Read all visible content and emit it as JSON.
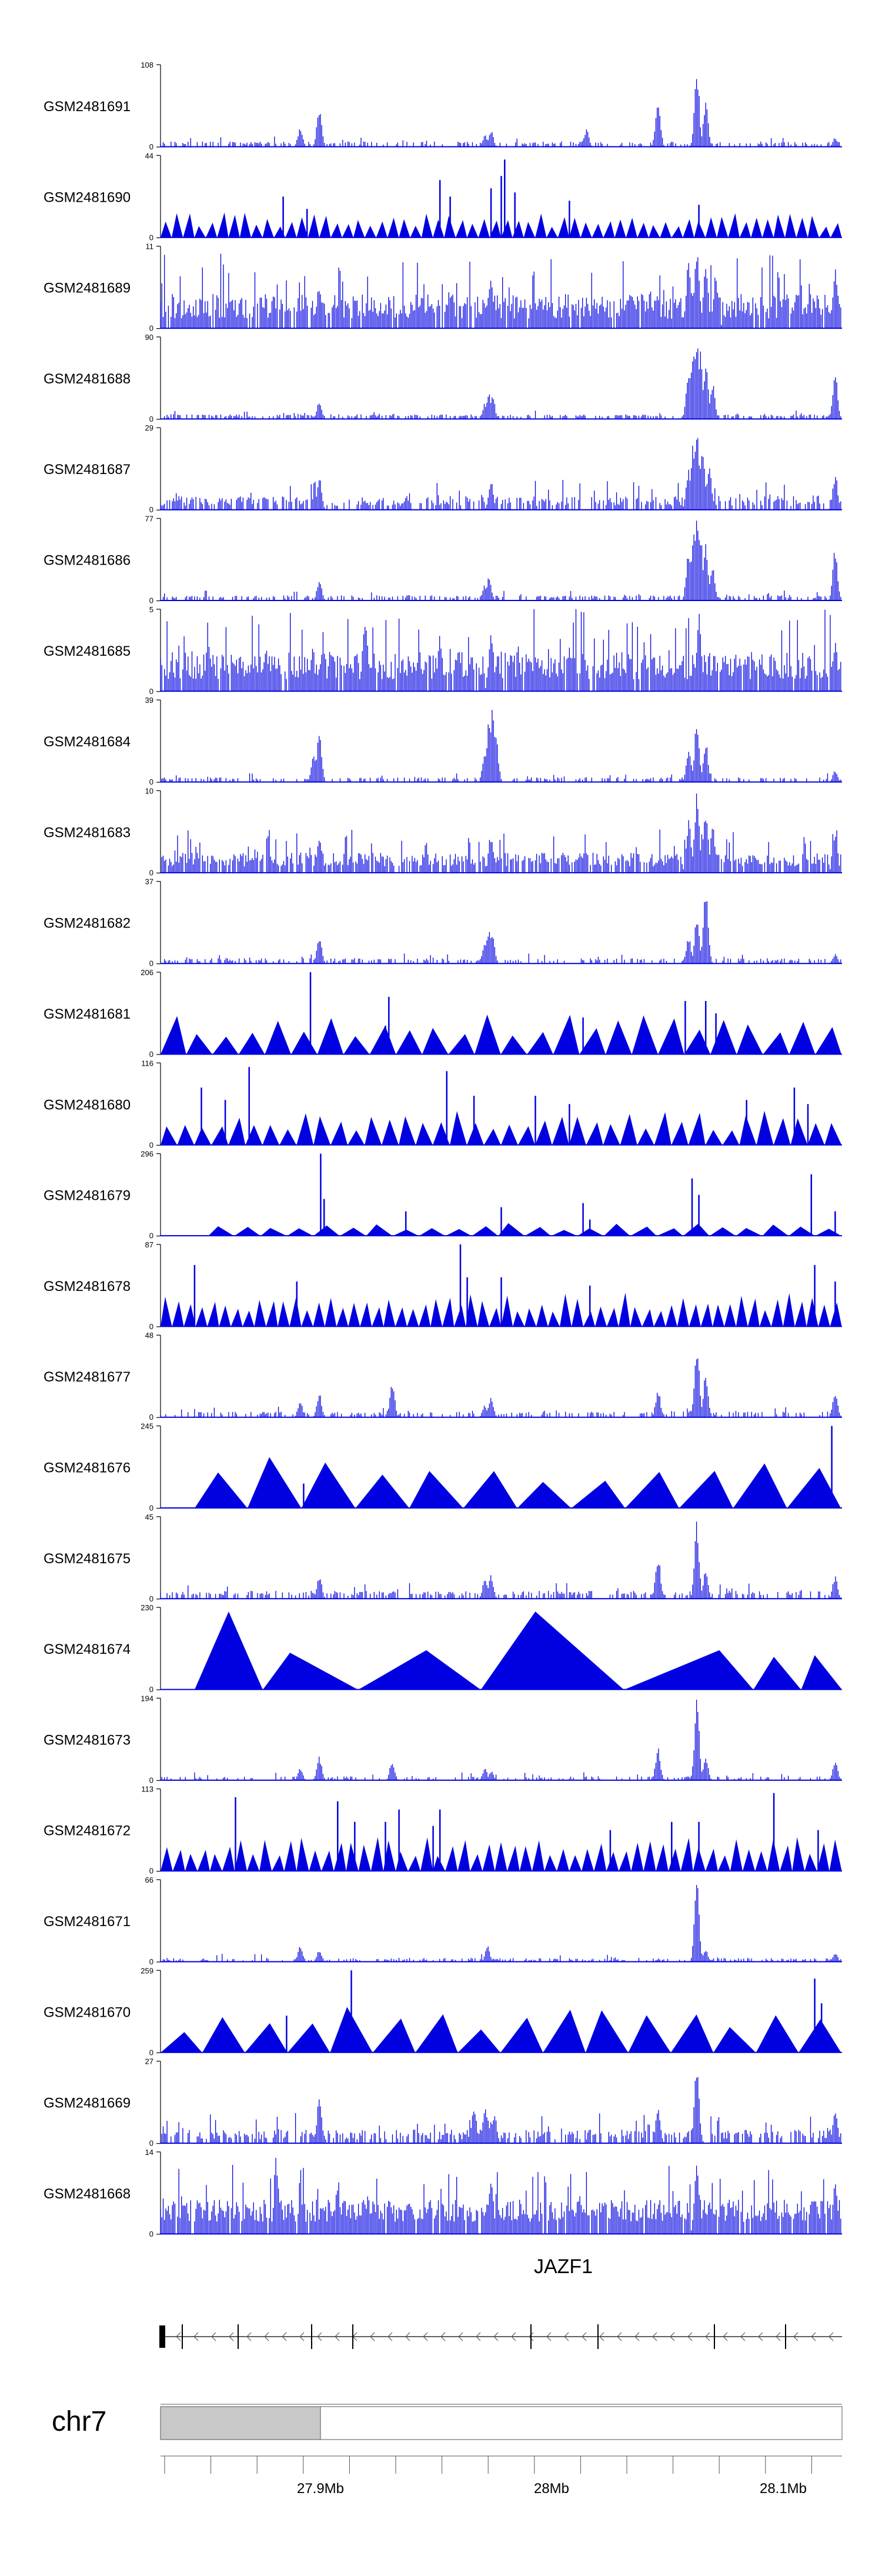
{
  "tracks": [
    {
      "id": "GSM2481691",
      "ymax": "108",
      "ymin": "0",
      "style": "bars",
      "density": 0.35,
      "floor": 0.03,
      "noise": 0.06,
      "peaks": [
        [
          0.205,
          0.25
        ],
        [
          0.233,
          0.5
        ],
        [
          0.485,
          0.2
        ],
        [
          0.476,
          0.15
        ],
        [
          0.62,
          0.1
        ],
        [
          0.625,
          0.22
        ],
        [
          0.73,
          0.65
        ],
        [
          0.785,
          0.3
        ],
        [
          0.787,
          1.0
        ],
        [
          0.8,
          0.55
        ],
        [
          0.99,
          0.12
        ]
      ]
    },
    {
      "id": "GSM2481690",
      "ymax": "44",
      "ymin": "0",
      "style": "triangles",
      "count": 60,
      "base": 0.22,
      "spikes": [
        [
          0.18,
          0.5
        ],
        [
          0.215,
          0.35
        ],
        [
          0.41,
          0.7
        ],
        [
          0.425,
          0.5
        ],
        [
          0.485,
          0.6
        ],
        [
          0.5,
          0.75
        ],
        [
          0.505,
          0.95
        ],
        [
          0.52,
          0.55
        ],
        [
          0.6,
          0.45
        ],
        [
          0.79,
          0.4
        ]
      ]
    },
    {
      "id": "GSM2481689",
      "ymax": "11",
      "ymin": "0",
      "style": "bars",
      "density": 0.9,
      "floor": 0.12,
      "noise": 0.5,
      "peaks": [
        [
          0.233,
          0.6
        ],
        [
          0.485,
          0.7
        ],
        [
          0.775,
          0.9
        ],
        [
          0.787,
          1.0
        ],
        [
          0.8,
          0.85
        ],
        [
          0.815,
          0.7
        ],
        [
          0.99,
          0.8
        ]
      ]
    },
    {
      "id": "GSM2481688",
      "ymax": "90",
      "ymin": "0",
      "style": "bars",
      "density": 0.45,
      "floor": 0.03,
      "noise": 0.05,
      "peaks": [
        [
          0.233,
          0.25
        ],
        [
          0.476,
          0.2
        ],
        [
          0.482,
          0.33
        ],
        [
          0.487,
          0.3
        ],
        [
          0.775,
          0.65
        ],
        [
          0.782,
          0.95
        ],
        [
          0.787,
          1.0
        ],
        [
          0.792,
          0.9
        ],
        [
          0.8,
          0.7
        ],
        [
          0.81,
          0.45
        ],
        [
          0.99,
          0.6
        ]
      ]
    },
    {
      "id": "GSM2481687",
      "ymax": "29",
      "ymin": "0",
      "style": "bars",
      "density": 0.6,
      "floor": 0.05,
      "noise": 0.2,
      "peaks": [
        [
          0.233,
          0.4
        ],
        [
          0.485,
          0.35
        ],
        [
          0.775,
          0.55
        ],
        [
          0.782,
          0.85
        ],
        [
          0.787,
          1.0
        ],
        [
          0.795,
          0.8
        ],
        [
          0.805,
          0.6
        ],
        [
          0.99,
          0.45
        ]
      ]
    },
    {
      "id": "GSM2481686",
      "ymax": "77",
      "ymin": "0",
      "style": "bars",
      "density": 0.45,
      "floor": 0.03,
      "noise": 0.06,
      "peaks": [
        [
          0.233,
          0.25
        ],
        [
          0.476,
          0.2
        ],
        [
          0.482,
          0.3
        ],
        [
          0.775,
          0.65
        ],
        [
          0.782,
          0.95
        ],
        [
          0.787,
          1.0
        ],
        [
          0.792,
          0.9
        ],
        [
          0.8,
          0.7
        ],
        [
          0.81,
          0.45
        ],
        [
          0.99,
          0.65
        ]
      ]
    },
    {
      "id": "GSM2481685",
      "ymax": "5",
      "ymin": "0",
      "style": "bars",
      "density": 0.95,
      "floor": 0.15,
      "noise": 0.55,
      "peaks": [
        [
          0.07,
          0.75
        ],
        [
          0.155,
          0.6
        ],
        [
          0.3,
          1.0
        ],
        [
          0.41,
          0.7
        ],
        [
          0.485,
          0.8
        ],
        [
          0.79,
          0.95
        ],
        [
          0.99,
          0.6
        ]
      ]
    },
    {
      "id": "GSM2481684",
      "ymax": "39",
      "ymin": "0",
      "style": "bars",
      "density": 0.35,
      "floor": 0.03,
      "noise": 0.05,
      "peaks": [
        [
          0.225,
          0.35
        ],
        [
          0.233,
          0.6
        ],
        [
          0.476,
          0.4
        ],
        [
          0.482,
          0.75
        ],
        [
          0.487,
          1.0
        ],
        [
          0.492,
          0.6
        ],
        [
          0.775,
          0.45
        ],
        [
          0.787,
          0.75
        ],
        [
          0.8,
          0.5
        ],
        [
          0.99,
          0.15
        ]
      ]
    },
    {
      "id": "GSM2481683",
      "ymax": "10",
      "ymin": "0",
      "style": "bars",
      "density": 0.8,
      "floor": 0.08,
      "noise": 0.28,
      "peaks": [
        [
          0.233,
          0.45
        ],
        [
          0.485,
          0.5
        ],
        [
          0.775,
          0.65
        ],
        [
          0.787,
          1.0
        ],
        [
          0.8,
          0.8
        ],
        [
          0.81,
          0.6
        ],
        [
          0.99,
          0.5
        ]
      ]
    },
    {
      "id": "GSM2481682",
      "ymax": "37",
      "ymin": "0",
      "style": "bars",
      "density": 0.4,
      "floor": 0.03,
      "noise": 0.06,
      "peaks": [
        [
          0.233,
          0.35
        ],
        [
          0.476,
          0.3
        ],
        [
          0.482,
          0.45
        ],
        [
          0.487,
          0.35
        ],
        [
          0.775,
          0.35
        ],
        [
          0.787,
          0.6
        ],
        [
          0.8,
          1.0
        ],
        [
          0.99,
          0.12
        ]
      ]
    },
    {
      "id": "GSM2481681",
      "ymax": "206",
      "ymin": "0",
      "style": "triangles",
      "count": 26,
      "base": 0.35,
      "spikes": [
        [
          0.22,
          1.0
        ],
        [
          0.335,
          0.7
        ],
        [
          0.33,
          0.35
        ],
        [
          0.77,
          0.65
        ],
        [
          0.8,
          0.65
        ],
        [
          0.815,
          0.5
        ],
        [
          0.62,
          0.45
        ]
      ]
    },
    {
      "id": "GSM2481680",
      "ymax": "116",
      "ymin": "0",
      "style": "triangles",
      "count": 40,
      "base": 0.3,
      "spikes": [
        [
          0.06,
          0.7
        ],
        [
          0.095,
          0.55
        ],
        [
          0.13,
          0.95
        ],
        [
          0.42,
          0.9
        ],
        [
          0.46,
          0.6
        ],
        [
          0.55,
          0.6
        ],
        [
          0.6,
          0.5
        ],
        [
          0.86,
          0.55
        ],
        [
          0.93,
          0.7
        ],
        [
          0.95,
          0.5
        ]
      ]
    },
    {
      "id": "GSM2481679",
      "ymax": "296",
      "ymin": "0",
      "style": "triangles",
      "count": 24,
      "base": 0.12,
      "start": 0.07,
      "spikes": [
        [
          0.235,
          1.0
        ],
        [
          0.24,
          0.45
        ],
        [
          0.36,
          0.3
        ],
        [
          0.5,
          0.35
        ],
        [
          0.62,
          0.4
        ],
        [
          0.63,
          0.2
        ],
        [
          0.78,
          0.7
        ],
        [
          0.79,
          0.5
        ],
        [
          0.955,
          0.75
        ],
        [
          0.99,
          0.3
        ]
      ]
    },
    {
      "id": "GSM2481678",
      "ymax": "87",
      "ymin": "0",
      "style": "triangles",
      "count": 58,
      "base": 0.3,
      "spikes": [
        [
          0.05,
          0.75
        ],
        [
          0.2,
          0.55
        ],
        [
          0.44,
          1.0
        ],
        [
          0.45,
          0.6
        ],
        [
          0.5,
          0.6
        ],
        [
          0.63,
          0.5
        ],
        [
          0.96,
          0.75
        ],
        [
          0.99,
          0.55
        ]
      ]
    },
    {
      "id": "GSM2481677",
      "ymax": "48",
      "ymin": "0",
      "style": "bars",
      "density": 0.35,
      "floor": 0.03,
      "noise": 0.07,
      "peaks": [
        [
          0.205,
          0.2
        ],
        [
          0.233,
          0.3
        ],
        [
          0.34,
          0.45
        ],
        [
          0.476,
          0.15
        ],
        [
          0.485,
          0.25
        ],
        [
          0.73,
          0.35
        ],
        [
          0.785,
          0.4
        ],
        [
          0.787,
          0.95
        ],
        [
          0.8,
          0.55
        ],
        [
          0.99,
          0.35
        ]
      ]
    },
    {
      "id": "GSM2481676",
      "ymax": "245",
      "ymin": "0",
      "style": "triangles",
      "count": 12,
      "base": 0.5,
      "start": 0.05,
      "spikes": [
        [
          0.21,
          0.3
        ],
        [
          0.485,
          0.35
        ],
        [
          0.985,
          1.0
        ]
      ]
    },
    {
      "id": "GSM2481675",
      "ymax": "45",
      "ymin": "0",
      "style": "bars",
      "density": 0.45,
      "floor": 0.04,
      "noise": 0.1,
      "peaks": [
        [
          0.233,
          0.3
        ],
        [
          0.476,
          0.25
        ],
        [
          0.485,
          0.3
        ],
        [
          0.73,
          0.55
        ],
        [
          0.787,
          0.95
        ],
        [
          0.8,
          0.35
        ],
        [
          0.99,
          0.3
        ]
      ]
    },
    {
      "id": "GSM2481674",
      "ymax": "230",
      "ymin": "0",
      "style": "triangles",
      "count": 7,
      "base": 0.5,
      "start": 0.05,
      "peaksFixed": [
        [
          0.05,
          0.0
        ],
        [
          0.1,
          0.95
        ],
        [
          0.15,
          0.0
        ],
        [
          0.19,
          0.45
        ],
        [
          0.29,
          0.0
        ],
        [
          0.39,
          0.48
        ],
        [
          0.47,
          0.0
        ],
        [
          0.55,
          0.95
        ],
        [
          0.68,
          0.0
        ],
        [
          0.82,
          0.48
        ],
        [
          0.87,
          0.0
        ],
        [
          0.9,
          0.4
        ],
        [
          0.94,
          0.0
        ],
        [
          0.96,
          0.42
        ],
        [
          1.0,
          0.0
        ]
      ]
    },
    {
      "id": "GSM2481673",
      "ymax": "194",
      "ymin": "0",
      "style": "bars",
      "density": 0.3,
      "floor": 0.02,
      "noise": 0.05,
      "peaks": [
        [
          0.205,
          0.15
        ],
        [
          0.233,
          0.3
        ],
        [
          0.34,
          0.25
        ],
        [
          0.476,
          0.15
        ],
        [
          0.485,
          0.12
        ],
        [
          0.73,
          0.4
        ],
        [
          0.787,
          1.0
        ],
        [
          0.8,
          0.3
        ],
        [
          0.99,
          0.25
        ]
      ]
    },
    {
      "id": "GSM2481672",
      "ymax": "113",
      "ymin": "0",
      "style": "triangles",
      "count": 55,
      "base": 0.3,
      "spikes": [
        [
          0.11,
          0.9
        ],
        [
          0.26,
          0.85
        ],
        [
          0.285,
          0.6
        ],
        [
          0.33,
          0.6
        ],
        [
          0.35,
          0.75
        ],
        [
          0.4,
          0.55
        ],
        [
          0.41,
          0.75
        ],
        [
          0.66,
          0.5
        ],
        [
          0.75,
          0.6
        ],
        [
          0.79,
          0.6
        ],
        [
          0.9,
          0.95
        ],
        [
          0.965,
          0.5
        ]
      ]
    },
    {
      "id": "GSM2481671",
      "ymax": "66",
      "ymin": "0",
      "style": "bars",
      "density": 0.35,
      "floor": 0.02,
      "noise": 0.05,
      "peaks": [
        [
          0.205,
          0.2
        ],
        [
          0.233,
          0.15
        ],
        [
          0.48,
          0.2
        ],
        [
          0.787,
          1.0
        ],
        [
          0.8,
          0.15
        ],
        [
          0.99,
          0.12
        ]
      ]
    },
    {
      "id": "GSM2481670",
      "ymax": "259",
      "ymin": "0",
      "style": "triangles",
      "count": 16,
      "base": 0.4,
      "spikes": [
        [
          0.28,
          1.0
        ],
        [
          0.185,
          0.45
        ],
        [
          0.96,
          0.9
        ],
        [
          0.97,
          0.6
        ]
      ]
    },
    {
      "id": "GSM2481669",
      "ymax": "27",
      "ymin": "0",
      "style": "bars",
      "density": 0.6,
      "floor": 0.05,
      "noise": 0.2,
      "peaks": [
        [
          0.233,
          0.55
        ],
        [
          0.46,
          0.5
        ],
        [
          0.476,
          0.45
        ],
        [
          0.485,
          0.3
        ],
        [
          0.49,
          0.35
        ],
        [
          0.73,
          0.45
        ],
        [
          0.787,
          1.0
        ],
        [
          0.99,
          0.4
        ]
      ]
    },
    {
      "id": "GSM2481668",
      "ymax": "14",
      "ymin": "0",
      "style": "bars",
      "density": 0.95,
      "floor": 0.15,
      "noise": 0.45,
      "peaks": [
        [
          0.17,
          1.0
        ],
        [
          0.26,
          0.7
        ],
        [
          0.485,
          0.8
        ],
        [
          0.787,
          0.85
        ],
        [
          0.99,
          0.7
        ]
      ]
    }
  ],
  "gene": {
    "name": "JAZF1"
  },
  "chromosome": {
    "name": "chr7"
  },
  "ruler": {
    "ticks": [
      "27.9Mb",
      "28Mb",
      "28.1Mb"
    ],
    "range_mb": [
      27.83,
      28.13
    ]
  },
  "colors": {
    "signal": "#0000e0",
    "ideogram": "#c8c8c8",
    "axis": "#000000"
  }
}
